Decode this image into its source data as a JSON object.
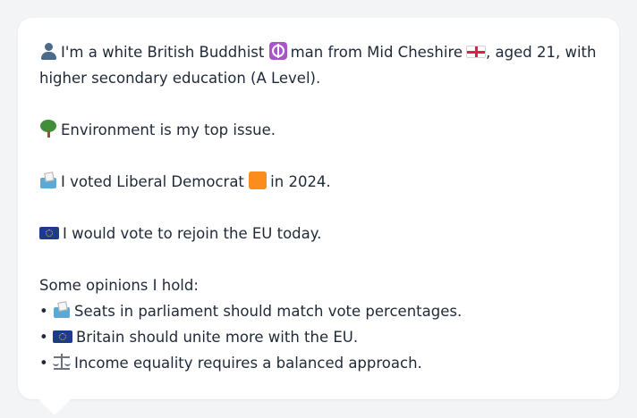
{
  "profile": {
    "intro_part1": "I'm a white British Buddhist",
    "intro_part2": "man from Mid Cheshire",
    "intro_part3": ", aged 21, with higher secondary education (A Level).",
    "top_issue": "Environment is my top issue.",
    "vote_part1": "I voted Liberal Democrat",
    "vote_part2": "in 2024.",
    "eu_stance": "I would vote to rejoin the EU today.",
    "opinions_title": "Some opinions I hold:",
    "opinions": [
      "Seats in parliament should match vote percentages.",
      "Britain should unite more with the EU.",
      "Income equality requires a balanced approach."
    ]
  },
  "icons": {
    "intro": "person-silhouette-icon",
    "religion": "dharma-wheel-icon",
    "region_flag": "england-flag-icon",
    "issue": "tree-icon",
    "vote": "ballot-box-icon",
    "party_color": "orange-square-icon",
    "eu": "eu-flag-icon",
    "opinion_icons": [
      "ballot-box-icon",
      "eu-flag-icon",
      "balance-scale-icon"
    ]
  },
  "colors": {
    "background": "#f3f4f6",
    "bubble": "#ffffff",
    "text": "#1f2937",
    "party_orange": "#fb8c1e"
  }
}
